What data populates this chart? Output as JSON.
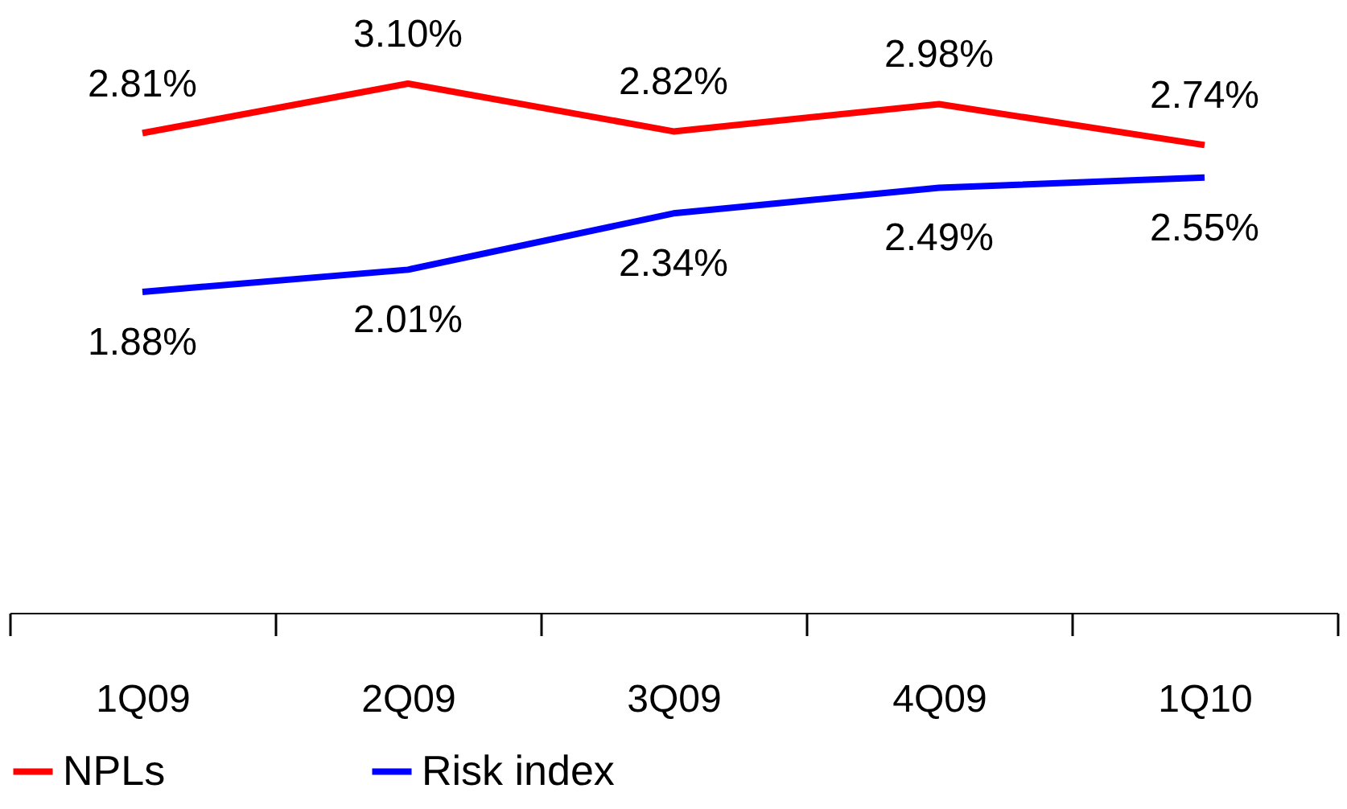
{
  "chart_data": {
    "type": "line",
    "categories": [
      "1Q09",
      "2Q09",
      "3Q09",
      "4Q09",
      "1Q10"
    ],
    "series": [
      {
        "name": "NPLs",
        "color": "#ff0000",
        "values": [
          2.81,
          3.1,
          2.82,
          2.98,
          2.74
        ],
        "value_labels": [
          "2.81%",
          "3.10%",
          "2.82%",
          "2.98%",
          "2.74%"
        ]
      },
      {
        "name": "Risk index",
        "color": "#0000ff",
        "values": [
          1.88,
          2.01,
          2.34,
          2.49,
          2.55
        ],
        "value_labels": [
          "1.88%",
          "2.01%",
          "2.34%",
          "2.49%",
          "2.55%"
        ]
      }
    ],
    "legend": "bottom",
    "grid": false,
    "marker": "none",
    "line_style": "solid",
    "tick_labels": "x"
  }
}
